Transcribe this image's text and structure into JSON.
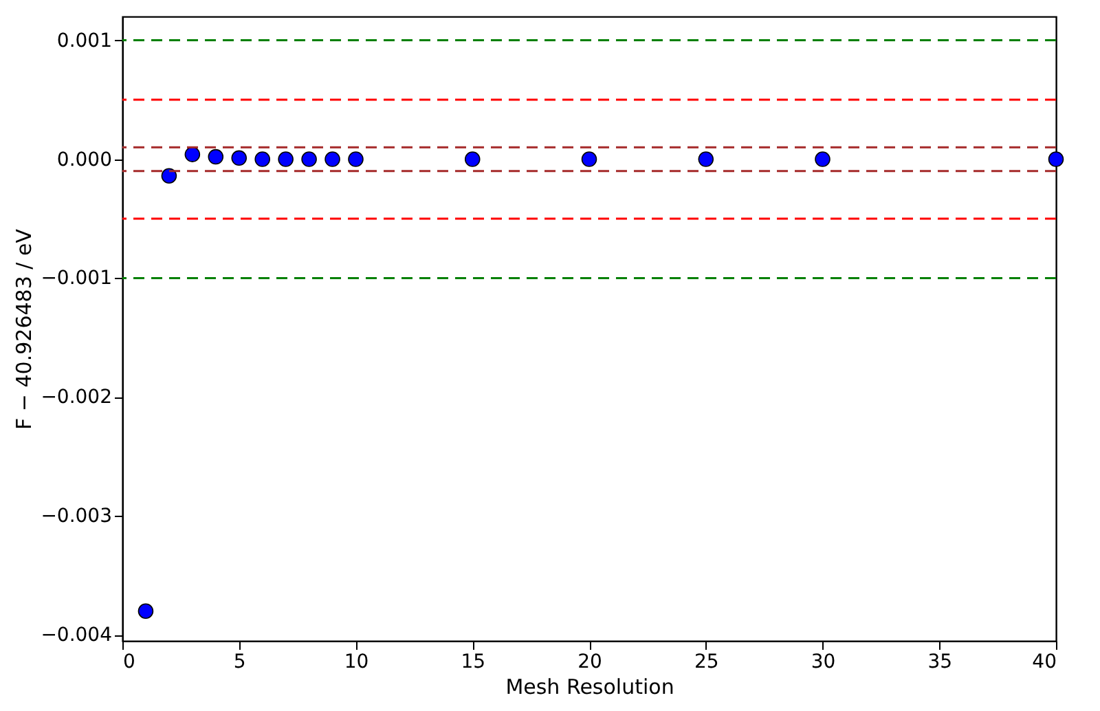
{
  "chart_data": {
    "type": "scatter",
    "xlabel": "Mesh Resolution",
    "ylabel": "F − 40.926483 / eV",
    "x": [
      1,
      2,
      3,
      4,
      5,
      6,
      7,
      8,
      9,
      10,
      15,
      20,
      25,
      30,
      40
    ],
    "series": [
      {
        "color": "#0000ff",
        "values": [
          -0.0038,
          -0.00014,
          4e-05,
          2e-05,
          1e-05,
          0,
          0,
          0,
          0,
          0,
          0,
          0,
          0,
          0,
          0
        ]
      }
    ],
    "xlim": [
      0,
      40
    ],
    "xticks": [
      0,
      5,
      10,
      15,
      20,
      25,
      30,
      35,
      40
    ],
    "ylim": [
      -0.00405,
      0.0012
    ],
    "yticks": [
      {
        "value": -0.004,
        "label": "−0.004"
      },
      {
        "value": -0.003,
        "label": "−0.003"
      },
      {
        "value": -0.002,
        "label": "−0.002"
      },
      {
        "value": -0.001,
        "label": "−0.001"
      },
      {
        "value": 0,
        "label": "0.000"
      },
      {
        "value": 0.001,
        "label": "0.001"
      }
    ],
    "marker": "circle",
    "grid": false,
    "legend": false,
    "ref_lines": [
      {
        "axis": "y",
        "value": 0.001,
        "color": "#008000",
        "line_style": "dashed"
      },
      {
        "axis": "y",
        "value": 0.0005,
        "color": "#ff0000",
        "line_style": "dashed"
      },
      {
        "axis": "y",
        "value": 0.0001,
        "color": "#a52a2a",
        "line_style": "dashed"
      },
      {
        "axis": "y",
        "value": -0.0001,
        "color": "#a52a2a",
        "line_style": "dashed"
      },
      {
        "axis": "y",
        "value": -0.0005,
        "color": "#ff0000",
        "line_style": "dashed"
      },
      {
        "axis": "y",
        "value": -0.001,
        "color": "#008000",
        "line_style": "dashed"
      }
    ]
  }
}
